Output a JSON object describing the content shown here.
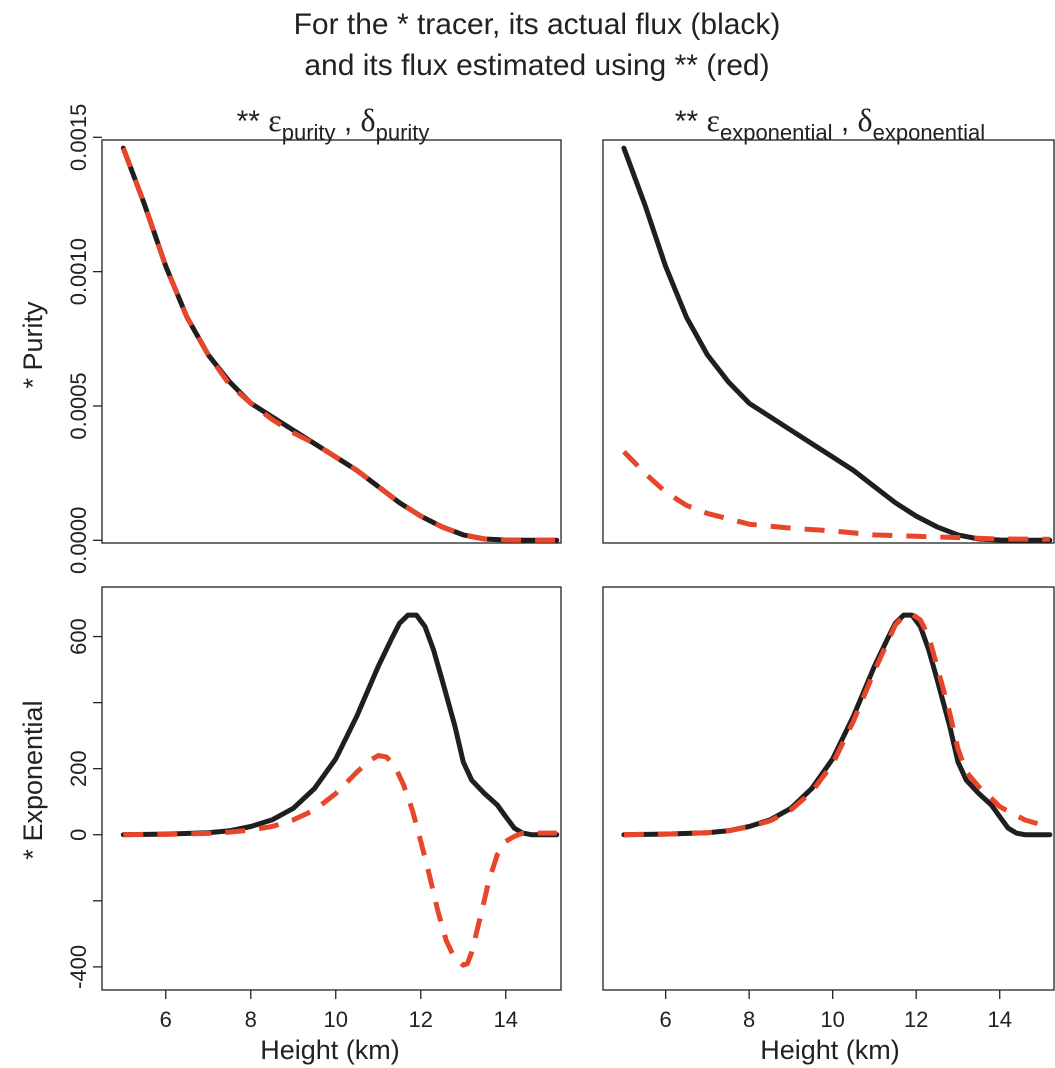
{
  "title": {
    "line1": "For the * tracer, its actual flux (black)",
    "line2": "and its flux estimated using ** (red)"
  },
  "columns": [
    {
      "prefix": "** ",
      "eps": "ε",
      "eps_sub": "purity",
      "sep": " , ",
      "delta": "δ",
      "delta_sub": "purity"
    },
    {
      "prefix": "** ",
      "eps": "ε",
      "eps_sub": "exponential",
      "sep": " , ",
      "delta": "δ",
      "delta_sub": "exponential"
    }
  ],
  "rows": [
    {
      "label": "* Purity"
    },
    {
      "label": "* Exponential"
    }
  ],
  "xlabel": "Height (km)",
  "colors": {
    "actual": "#1f1f1f",
    "estimated": "#e8462a"
  },
  "chart_data": [
    {
      "type": "line",
      "panel": "purity tracer / purity estimate",
      "xlabel": "Height (km)",
      "xlim": [
        4.5,
        15.3
      ],
      "ylim": [
        -1e-05,
        0.00149
      ],
      "xticks": [
        6,
        8,
        10,
        12,
        14
      ],
      "yticks": [
        0.0,
        0.0005,
        0.001,
        0.0015
      ],
      "ytick_labels": [
        "0.0000",
        "0.0005",
        "0.0010",
        "0.0015"
      ],
      "show_x_ticks": false,
      "show_y_ticks": true,
      "series": [
        {
          "role": "actual",
          "color": "#1f1f1f",
          "x": [
            5,
            5.5,
            6,
            6.5,
            7,
            7.5,
            8,
            8.5,
            9,
            9.5,
            10,
            10.5,
            11,
            11.5,
            12,
            12.5,
            13,
            13.5,
            14,
            14.5,
            15,
            15.2
          ],
          "y": [
            0.00146,
            0.00125,
            0.00102,
            0.00083,
            0.00069,
            0.00059,
            0.00051,
            0.00046,
            0.00041,
            0.00036,
            0.00031,
            0.00026,
            0.0002,
            0.00014,
            9e-05,
            5e-05,
            2e-05,
            5e-06,
            1e-06,
            0.0,
            0.0,
            0.0
          ]
        },
        {
          "role": "estimated",
          "color": "#e8462a",
          "x": [
            5,
            5.5,
            6,
            6.5,
            7,
            7.5,
            8,
            8.5,
            9,
            9.5,
            10,
            10.5,
            11,
            11.5,
            12,
            12.5,
            13,
            13.5,
            14,
            14.5,
            15,
            15.2
          ],
          "y": [
            0.00146,
            0.00125,
            0.00102,
            0.00083,
            0.00069,
            0.00058,
            0.00051,
            0.00045,
            0.0004,
            0.00036,
            0.00031,
            0.00026,
            0.0002,
            0.00014,
            9e-05,
            5e-05,
            2e-05,
            5e-06,
            1e-06,
            0.0,
            0.0,
            0.0
          ]
        }
      ]
    },
    {
      "type": "line",
      "panel": "purity tracer / exponential estimate",
      "xlabel": "Height (km)",
      "xlim": [
        4.5,
        15.3
      ],
      "ylim": [
        -1e-05,
        0.00149
      ],
      "xticks": [
        6,
        8,
        10,
        12,
        14
      ],
      "yticks": [
        0.0,
        0.0005,
        0.001,
        0.0015
      ],
      "show_x_ticks": false,
      "show_y_ticks": false,
      "series": [
        {
          "role": "actual",
          "color": "#1f1f1f",
          "x": [
            5,
            5.5,
            6,
            6.5,
            7,
            7.5,
            8,
            8.5,
            9,
            9.5,
            10,
            10.5,
            11,
            11.5,
            12,
            12.5,
            13,
            13.5,
            14,
            14.5,
            15,
            15.2
          ],
          "y": [
            0.00146,
            0.00125,
            0.00102,
            0.00083,
            0.00069,
            0.00059,
            0.00051,
            0.00046,
            0.00041,
            0.00036,
            0.00031,
            0.00026,
            0.0002,
            0.00014,
            9e-05,
            5e-05,
            2e-05,
            5e-06,
            1e-06,
            0.0,
            0.0,
            0.0
          ]
        },
        {
          "role": "estimated",
          "color": "#e8462a",
          "x": [
            5,
            5.5,
            6,
            6.5,
            7,
            7.5,
            8,
            9,
            10,
            11,
            12,
            13,
            14,
            15,
            15.2
          ],
          "y": [
            0.00033,
            0.00025,
            0.00018,
            0.00013,
            0.0001,
            8e-05,
            6e-05,
            4.5e-05,
            3.5e-05,
            2e-05,
            1.5e-05,
            1e-05,
            5e-06,
            4e-06,
            4e-06
          ]
        }
      ]
    },
    {
      "type": "line",
      "panel": "exponential tracer / purity estimate",
      "xlabel": "Height (km)",
      "xlim": [
        4.5,
        15.3
      ],
      "ylim": [
        -470,
        750
      ],
      "xticks": [
        6,
        8,
        10,
        12,
        14
      ],
      "yticks": [
        -400,
        -200,
        0,
        200,
        400,
        600
      ],
      "ytick_labels": [
        "-400",
        "",
        "0",
        "200",
        "",
        "600"
      ],
      "show_x_ticks": true,
      "show_y_ticks": true,
      "series": [
        {
          "role": "actual",
          "color": "#1f1f1f",
          "x": [
            5,
            6,
            7,
            7.5,
            8,
            8.5,
            9,
            9.5,
            10,
            10.5,
            11,
            11.3,
            11.5,
            11.7,
            11.9,
            12.1,
            12.3,
            12.5,
            12.8,
            13,
            13.2,
            13.5,
            13.8,
            14,
            14.2,
            14.4,
            14.6,
            15,
            15.2
          ],
          "y": [
            0,
            2,
            6,
            12,
            25,
            45,
            80,
            140,
            230,
            360,
            510,
            590,
            640,
            665,
            665,
            630,
            560,
            470,
            330,
            220,
            165,
            125,
            90,
            55,
            20,
            5,
            0,
            0,
            0
          ]
        },
        {
          "role": "estimated",
          "color": "#e8462a",
          "x": [
            5,
            6,
            7,
            7.5,
            8,
            8.5,
            9,
            9.5,
            10,
            10.5,
            10.8,
            11,
            11.2,
            11.4,
            11.6,
            11.8,
            12,
            12.2,
            12.4,
            12.6,
            12.8,
            13,
            13.1,
            13.2,
            13.4,
            13.6,
            13.8,
            14,
            14.2,
            14.4,
            15,
            15.2
          ],
          "y": [
            0,
            1,
            4,
            8,
            14,
            25,
            45,
            75,
            125,
            190,
            225,
            240,
            235,
            205,
            150,
            75,
            -20,
            -120,
            -230,
            -320,
            -375,
            -395,
            -390,
            -355,
            -250,
            -140,
            -60,
            -20,
            -5,
            5,
            5,
            5
          ]
        }
      ]
    },
    {
      "type": "line",
      "panel": "exponential tracer / exponential estimate",
      "xlabel": "Height (km)",
      "xlim": [
        4.5,
        15.3
      ],
      "ylim": [
        -470,
        750
      ],
      "xticks": [
        6,
        8,
        10,
        12,
        14
      ],
      "yticks": [
        -400,
        -200,
        0,
        200,
        400,
        600
      ],
      "show_x_ticks": true,
      "show_y_ticks": false,
      "series": [
        {
          "role": "actual",
          "color": "#1f1f1f",
          "x": [
            5,
            6,
            7,
            7.5,
            8,
            8.5,
            9,
            9.5,
            10,
            10.5,
            11,
            11.3,
            11.5,
            11.7,
            11.9,
            12.1,
            12.3,
            12.5,
            12.8,
            13,
            13.2,
            13.5,
            13.8,
            14,
            14.2,
            14.4,
            14.6,
            15,
            15.2
          ],
          "y": [
            0,
            2,
            6,
            12,
            25,
            45,
            80,
            140,
            230,
            360,
            510,
            590,
            640,
            665,
            665,
            630,
            560,
            470,
            330,
            220,
            165,
            125,
            90,
            55,
            20,
            5,
            0,
            0,
            0
          ]
        },
        {
          "role": "estimated",
          "color": "#e8462a",
          "x": [
            5,
            6,
            7,
            7.5,
            8,
            8.5,
            9,
            9.5,
            10,
            10.5,
            11,
            11.3,
            11.5,
            11.7,
            11.9,
            12.1,
            12.3,
            12.5,
            12.8,
            13,
            13.2,
            13.5,
            13.8,
            14,
            14.3,
            14.6,
            15,
            15.2
          ],
          "y": [
            0,
            2,
            6,
            12,
            24,
            42,
            75,
            130,
            215,
            345,
            495,
            580,
            635,
            662,
            668,
            650,
            600,
            510,
            370,
            260,
            190,
            145,
            110,
            85,
            65,
            45,
            30,
            25
          ]
        }
      ]
    }
  ]
}
